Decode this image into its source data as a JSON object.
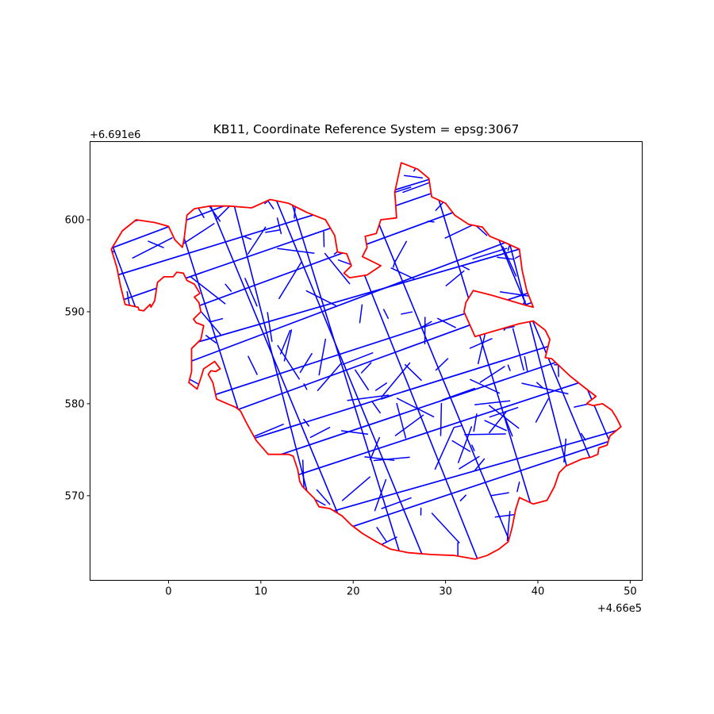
{
  "chart_data": {
    "type": "map",
    "title": "KB11, Coordinate Reference System = epsg:3067",
    "x_offset_label": "+4.66e5",
    "y_offset_label": "+6.691e6",
    "x_ticks": [
      0,
      10,
      20,
      30,
      40,
      50
    ],
    "y_ticks": [
      570,
      580,
      590,
      600
    ],
    "x_tick_labels": [
      "0",
      "10",
      "20",
      "30",
      "40",
      "50"
    ],
    "y_tick_labels": [
      "570",
      "580",
      "590",
      "600"
    ],
    "xlim": [
      -8.5,
      51.3
    ],
    "ylim": [
      560.8,
      608.5
    ],
    "grid": false,
    "colors": {
      "boundary": "#ff0000",
      "traces": "#0000ff",
      "frame": "#000000"
    },
    "boundary": [
      [
        -6.2,
        596.8
      ],
      [
        -5,
        598.8
      ],
      [
        -3.5,
        600
      ],
      [
        -1.5,
        599.7
      ],
      [
        0,
        599.3
      ],
      [
        0.7,
        597.8
      ],
      [
        1.5,
        597
      ],
      [
        1.7,
        598
      ],
      [
        2,
        600.5
      ],
      [
        2.8,
        601.2
      ],
      [
        4.5,
        601.5
      ],
      [
        6.5,
        601.5
      ],
      [
        9,
        601.3
      ],
      [
        11,
        602.2
      ],
      [
        13,
        601.8
      ],
      [
        15,
        600.8
      ],
      [
        17,
        600
      ],
      [
        18,
        598.3
      ],
      [
        18.3,
        596.5
      ],
      [
        19.3,
        596.3
      ],
      [
        19.8,
        595
      ],
      [
        19,
        594.2
      ],
      [
        19.6,
        593.7
      ],
      [
        21.5,
        594
      ],
      [
        23,
        595
      ],
      [
        21,
        596
      ],
      [
        21.5,
        597
      ],
      [
        21.3,
        598.2
      ],
      [
        22.5,
        598.5
      ],
      [
        23,
        600
      ],
      [
        24.7,
        600.2
      ],
      [
        24.5,
        603
      ],
      [
        25.2,
        606.2
      ],
      [
        27,
        605.5
      ],
      [
        28.2,
        604.5
      ],
      [
        28.5,
        602.5
      ],
      [
        30,
        601.8
      ],
      [
        31,
        600.5
      ],
      [
        32.5,
        599.5
      ],
      [
        34,
        599.2
      ],
      [
        34.8,
        598.2
      ],
      [
        36.5,
        597.5
      ],
      [
        38,
        596.8
      ],
      [
        38.3,
        594.5
      ],
      [
        38.8,
        592.3
      ],
      [
        39.5,
        590.5
      ],
      [
        38.7,
        590.7
      ],
      [
        35,
        591.8
      ],
      [
        33,
        592.3
      ],
      [
        32.2,
        591
      ],
      [
        32,
        590
      ],
      [
        33.2,
        587.3
      ],
      [
        38,
        588.7
      ],
      [
        39.5,
        589
      ],
      [
        40.8,
        588
      ],
      [
        41.3,
        587
      ],
      [
        40.8,
        585
      ],
      [
        41.5,
        584.9
      ],
      [
        43.5,
        583
      ],
      [
        45,
        581.8
      ],
      [
        46.3,
        580.8
      ],
      [
        45.5,
        580.2
      ],
      [
        45.3,
        580
      ],
      [
        46,
        579.8
      ],
      [
        47,
        580
      ],
      [
        48,
        579.3
      ],
      [
        48.5,
        578.5
      ],
      [
        49,
        577.5
      ],
      [
        47.8,
        576.5
      ],
      [
        47.5,
        575.5
      ],
      [
        46.6,
        575.2
      ],
      [
        46.5,
        574.5
      ],
      [
        45.8,
        574.2
      ],
      [
        44.8,
        574
      ],
      [
        43,
        573.2
      ],
      [
        42.3,
        572.5
      ],
      [
        41.8,
        571
      ],
      [
        41,
        569.5
      ],
      [
        39.5,
        569.1
      ],
      [
        38,
        569.8
      ],
      [
        37.6,
        568.5
      ],
      [
        37.2,
        566.5
      ],
      [
        36.8,
        565
      ],
      [
        35.8,
        564.2
      ],
      [
        34.5,
        563.5
      ],
      [
        33.2,
        563.1
      ],
      [
        31,
        563.5
      ],
      [
        28.5,
        563.6
      ],
      [
        26,
        563.8
      ],
      [
        24,
        564.2
      ],
      [
        22.5,
        565
      ],
      [
        21,
        565.9
      ],
      [
        19.8,
        566.8
      ],
      [
        18.8,
        567.8
      ],
      [
        17.5,
        568.6
      ],
      [
        16.3,
        568.8
      ],
      [
        15.8,
        569.7
      ],
      [
        15.3,
        570.2
      ],
      [
        14.5,
        571
      ],
      [
        14.2,
        571.6
      ],
      [
        14,
        572.8
      ],
      [
        13.5,
        574.3
      ],
      [
        13,
        574.5
      ],
      [
        10.8,
        574.5
      ],
      [
        9.5,
        576
      ],
      [
        8.5,
        577.8
      ],
      [
        7.8,
        579.2
      ],
      [
        7.3,
        579.6
      ],
      [
        6.6,
        579.9
      ],
      [
        5.2,
        580.5
      ],
      [
        4.8,
        582.3
      ],
      [
        4.3,
        583.2
      ],
      [
        4.6,
        583.6
      ],
      [
        5.1,
        583.5
      ],
      [
        5.6,
        583.8
      ],
      [
        5,
        584.6
      ],
      [
        3.8,
        583.8
      ],
      [
        3.5,
        582.8
      ],
      [
        3.1,
        581.6
      ],
      [
        2.2,
        582.3
      ],
      [
        2.5,
        583.5
      ],
      [
        2.5,
        586
      ],
      [
        3.5,
        587
      ],
      [
        3.8,
        588.5
      ],
      [
        3,
        588.8
      ],
      [
        2.7,
        589.2
      ],
      [
        3.5,
        590
      ],
      [
        3.3,
        591
      ],
      [
        2.8,
        591.6
      ],
      [
        3.4,
        592
      ],
      [
        2.8,
        593
      ],
      [
        2,
        593.4
      ],
      [
        1.6,
        594.2
      ],
      [
        0.9,
        594.3
      ],
      [
        0.5,
        593.8
      ],
      [
        -0.5,
        593.8
      ],
      [
        -1.2,
        593.2
      ],
      [
        -1.5,
        591.2
      ],
      [
        -1.9,
        590.5
      ],
      [
        -2,
        590.8
      ],
      [
        -2.7,
        590.1
      ],
      [
        -3.2,
        590.2
      ],
      [
        -3.3,
        590.5
      ],
      [
        -4.7,
        590.8
      ],
      [
        -5.2,
        592.8
      ],
      [
        -5.6,
        594.8
      ],
      [
        -6.2,
        596.8
      ]
    ]
  }
}
